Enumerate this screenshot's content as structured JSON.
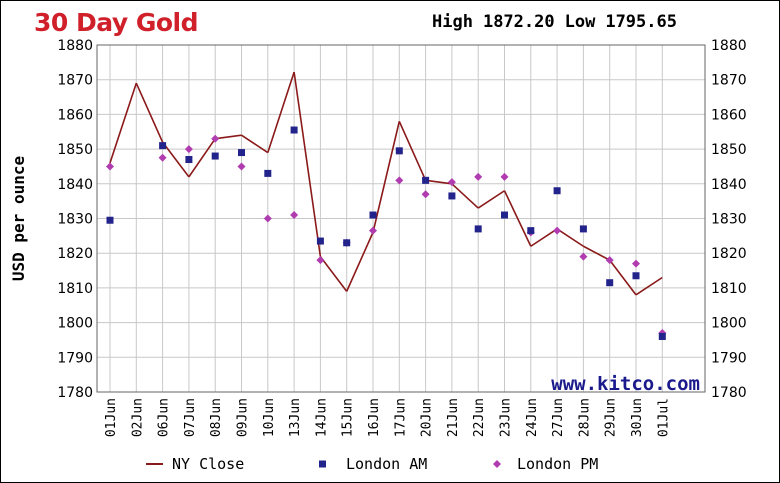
{
  "header": {
    "title": "30 Day Gold",
    "high_label": "High",
    "high_value": "1872.20",
    "low_label": "Low",
    "low_value": "1795.65"
  },
  "watermark": "www.kitco.com",
  "colors": {
    "title": "#d0202a",
    "ny_close": "#8b1a1a",
    "london_am": "#23238c",
    "london_pm": "#b03cb0",
    "grid": "#c8c8c8"
  },
  "chart_data": {
    "type": "line",
    "title": "30 Day Gold",
    "xlabel": "",
    "ylabel": "USD per ounce",
    "ylim": [
      1780,
      1880
    ],
    "yticks": [
      1880,
      1870,
      1860,
      1850,
      1840,
      1830,
      1820,
      1810,
      1800,
      1790,
      1780
    ],
    "categories": [
      "01Jun",
      "02Jun",
      "06Jun",
      "07Jun",
      "08Jun",
      "09Jun",
      "10Jun",
      "13Jun",
      "14Jun",
      "15Jun",
      "16Jun",
      "17Jun",
      "20Jun",
      "21Jun",
      "22Jun",
      "23Jun",
      "24Jun",
      "27Jun",
      "28Jun",
      "29Jun",
      "30Jun",
      "01Jul"
    ],
    "series": [
      {
        "name": "NY Close",
        "marker": "line",
        "values": [
          1846,
          1869,
          1852,
          1842,
          1853,
          1854,
          1849,
          1872.2,
          1819,
          1809,
          1826,
          1858,
          1841,
          1840,
          1833,
          1838,
          1822,
          1827,
          1822,
          1818,
          1808,
          1813
        ]
      },
      {
        "name": "London AM",
        "marker": "square",
        "values": [
          1829.5,
          null,
          1851,
          1847,
          1848,
          1849,
          1843,
          1855.5,
          1823.5,
          1823,
          1831,
          1849.5,
          1841,
          1836.5,
          1827,
          1831,
          1826.5,
          1838,
          1827,
          1811.5,
          1813.5,
          1796
        ]
      },
      {
        "name": "London PM",
        "marker": "diamond",
        "values": [
          1845,
          null,
          1847.5,
          1850,
          1853,
          1845,
          1830,
          1831,
          1818,
          1823,
          1826.5,
          1841,
          1837,
          1840.5,
          1842,
          1842,
          1826,
          1826.5,
          1819,
          1818,
          1817,
          1797
        ]
      }
    ],
    "legend": [
      "NY Close",
      "London AM",
      "London PM"
    ],
    "legend_position": "bottom",
    "grid": true
  }
}
